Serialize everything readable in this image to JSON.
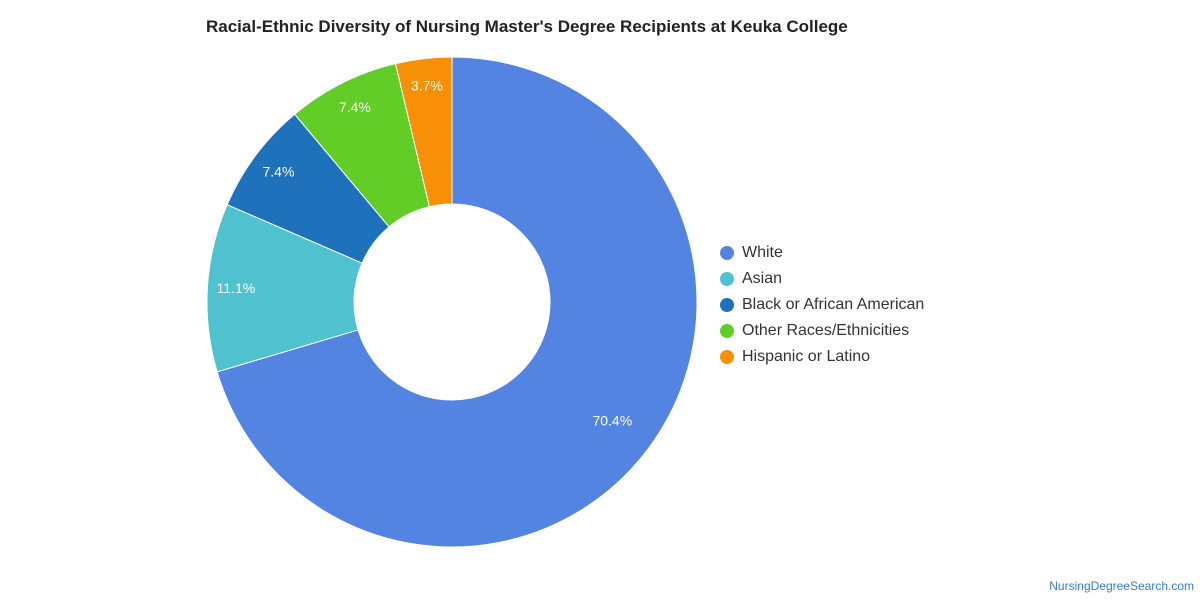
{
  "chart_data": {
    "type": "pie",
    "title": "Racial-Ethnic Diversity of Nursing Master's Degree Recipients at Keuka College",
    "legend_position": "right",
    "donut": true,
    "slices": [
      {
        "label": "White",
        "value": 70.4,
        "display": "70.4%",
        "color": "#5484e2"
      },
      {
        "label": "Asian",
        "value": 11.1,
        "display": "11.1%",
        "color": "#4fc1cf"
      },
      {
        "label": "Black or African American",
        "value": 7.4,
        "display": "7.4%",
        "color": "#1e72bb"
      },
      {
        "label": "Other Races/Ethnicities",
        "value": 7.4,
        "display": "7.4%",
        "color": "#62cd26"
      },
      {
        "label": "Hispanic or Latino",
        "value": 3.7,
        "display": "3.7%",
        "color": "#f78f07"
      }
    ]
  },
  "source": "NursingDegreeSearch.com"
}
